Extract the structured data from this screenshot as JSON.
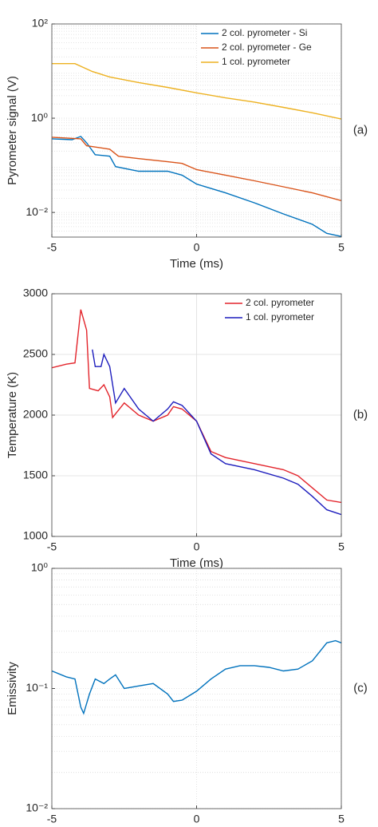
{
  "chart_data": [
    {
      "type": "line",
      "panel_label": "(a)",
      "ylabel": "Pyrometer signal (V)",
      "xlabel": "Time (ms)",
      "yscale": "log",
      "grid": true,
      "minor_grid": true,
      "legend": "northeast",
      "xlim": [
        -5,
        5
      ],
      "xticks": [
        -5,
        0,
        5
      ],
      "ylim": [
        0.003,
        100
      ],
      "yticks": [
        {
          "value": 0.01,
          "label": "10⁻²"
        },
        {
          "value": 1,
          "label": "10⁰"
        },
        {
          "value": 100,
          "label": "10²"
        }
      ],
      "series": [
        {
          "name": "2 col. pyrometer - Si",
          "color": "#0072bd",
          "x": [
            -5,
            -4.3,
            -4,
            -3.8,
            -3.5,
            -3,
            -2.8,
            -2,
            -1,
            -0.5,
            0,
            1,
            2,
            3,
            4,
            4.5,
            5
          ],
          "values": [
            0.365,
            0.35,
            0.41,
            0.3,
            0.168,
            0.156,
            0.094,
            0.075,
            0.075,
            0.062,
            0.04,
            0.026,
            0.016,
            0.0093,
            0.0056,
            0.0036,
            0.0031
          ]
        },
        {
          "name": "2 col. pyrometer - Ge",
          "color": "#d95319",
          "x": [
            -5,
            -4,
            -3.8,
            -3,
            -2.7,
            -2,
            -1,
            -0.5,
            0,
            1,
            2,
            3,
            4,
            5
          ],
          "values": [
            0.395,
            0.365,
            0.26,
            0.22,
            0.156,
            0.139,
            0.119,
            0.11,
            0.081,
            0.062,
            0.047,
            0.035,
            0.026,
            0.0178
          ]
        },
        {
          "name": "1 col. pyrometer",
          "color": "#edb120",
          "x": [
            -5,
            -4.2,
            -3.6,
            -3,
            -2,
            -1,
            0,
            1,
            2,
            3,
            4,
            5
          ],
          "values": [
            14.4,
            14.4,
            9.8,
            7.5,
            5.7,
            4.5,
            3.45,
            2.7,
            2.2,
            1.7,
            1.3,
            0.96
          ]
        }
      ]
    },
    {
      "type": "line",
      "panel_label": "(b)",
      "ylabel": "Temperature (K)",
      "xlabel": "Time (ms)",
      "grid": true,
      "legend": "northeast",
      "xlim": [
        -5,
        5
      ],
      "xticks": [
        -5,
        0,
        5
      ],
      "ylim": [
        1000,
        3000
      ],
      "yticks": [
        1000,
        1500,
        2000,
        2500,
        3000
      ],
      "series": [
        {
          "name": "2 col. pyrometer",
          "color": "#e3242b",
          "x": [
            -5,
            -4.5,
            -4.2,
            -4,
            -3.8,
            -3.7,
            -3.4,
            -3.2,
            -3,
            -2.9,
            -2.5,
            -2,
            -1.5,
            -1,
            -0.8,
            -0.5,
            0,
            0.5,
            1,
            2,
            3,
            3.5,
            4,
            4.5,
            5
          ],
          "values": [
            2390,
            2420,
            2430,
            2870,
            2700,
            2220,
            2200,
            2250,
            2150,
            1980,
            2100,
            2000,
            1950,
            2000,
            2070,
            2050,
            1950,
            1700,
            1650,
            1600,
            1550,
            1500,
            1400,
            1300,
            1280
          ]
        },
        {
          "name": "1 col. pyrometer",
          "color": "#1c1cbd",
          "x": [
            -3.6,
            -3.5,
            -3.3,
            -3.2,
            -3,
            -2.8,
            -2.5,
            -2,
            -1.5,
            -1,
            -0.8,
            -0.5,
            0,
            0.5,
            1,
            2,
            3,
            3.5,
            4,
            4.5,
            5
          ],
          "values": [
            2540,
            2400,
            2400,
            2500,
            2400,
            2100,
            2220,
            2050,
            1950,
            2050,
            2110,
            2080,
            1950,
            1680,
            1600,
            1550,
            1480,
            1430,
            1330,
            1220,
            1180
          ]
        }
      ]
    },
    {
      "type": "line",
      "panel_label": "(c)",
      "ylabel": "Emissivity",
      "xlabel": "Time (ms)",
      "yscale": "log",
      "grid": true,
      "minor_grid": true,
      "xlim": [
        -5,
        5
      ],
      "xticks": [
        -5,
        0,
        5
      ],
      "ylim": [
        0.01,
        1
      ],
      "yticks": [
        {
          "value": 0.01,
          "label": "10⁻²"
        },
        {
          "value": 0.1,
          "label": "10⁻¹"
        },
        {
          "value": 1,
          "label": "10⁰"
        }
      ],
      "series": [
        {
          "color": "#0072bd",
          "x": [
            -5,
            -4.5,
            -4.2,
            -4,
            -3.9,
            -3.7,
            -3.5,
            -3.2,
            -3,
            -2.8,
            -2.5,
            -2,
            -1.5,
            -1,
            -0.8,
            -0.5,
            0,
            0.5,
            1,
            1.5,
            2,
            2.5,
            3,
            3.5,
            4,
            4.5,
            4.8,
            5
          ],
          "values": [
            0.14,
            0.125,
            0.12,
            0.07,
            0.062,
            0.09,
            0.12,
            0.11,
            0.12,
            0.13,
            0.1,
            0.105,
            0.11,
            0.09,
            0.078,
            0.08,
            0.095,
            0.12,
            0.145,
            0.155,
            0.155,
            0.15,
            0.14,
            0.145,
            0.17,
            0.24,
            0.25,
            0.24
          ]
        }
      ]
    }
  ]
}
